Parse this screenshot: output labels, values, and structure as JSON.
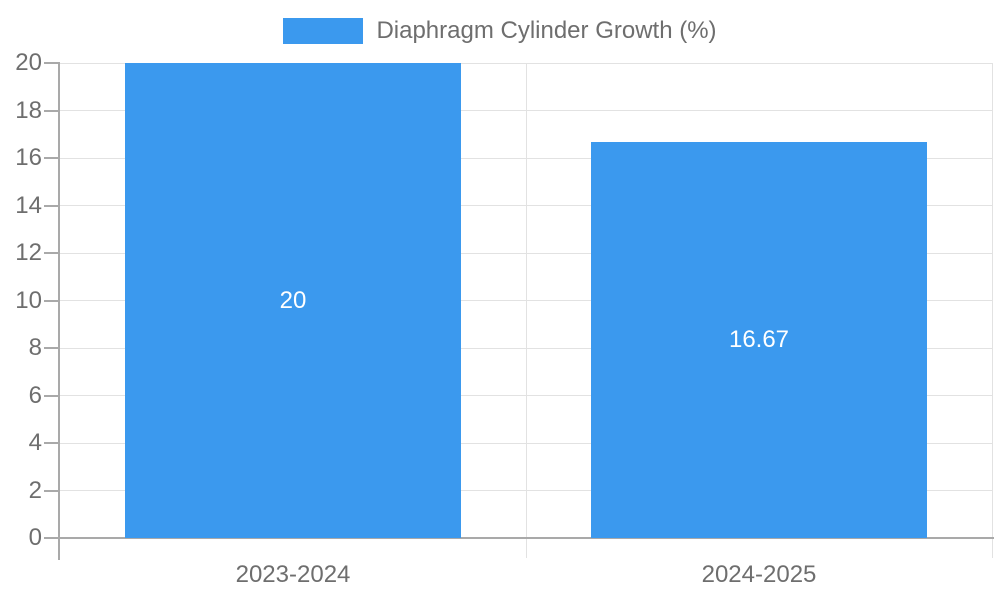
{
  "legend": {
    "label": "Diaphragm Cylinder Growth (%)"
  },
  "chart_data": {
    "type": "bar",
    "title": "",
    "categories": [
      "2023-2024",
      "2024-2025"
    ],
    "series": [
      {
        "name": "Diaphragm Cylinder Growth (%)",
        "values": [
          20,
          16.67
        ]
      }
    ],
    "value_labels": [
      "20",
      "16.67"
    ],
    "ylim": [
      0,
      20
    ],
    "yticks": [
      0,
      2,
      4,
      6,
      8,
      10,
      12,
      14,
      16,
      18,
      20
    ],
    "grid": true,
    "legend_position": "top-center",
    "colors": {
      "bar": "#3B99EE",
      "grid": "#e2e2e2",
      "axis": "#a9a9a9",
      "text": "#6e6e6e",
      "value_label": "#ffffff",
      "background": "#ffffff"
    }
  }
}
